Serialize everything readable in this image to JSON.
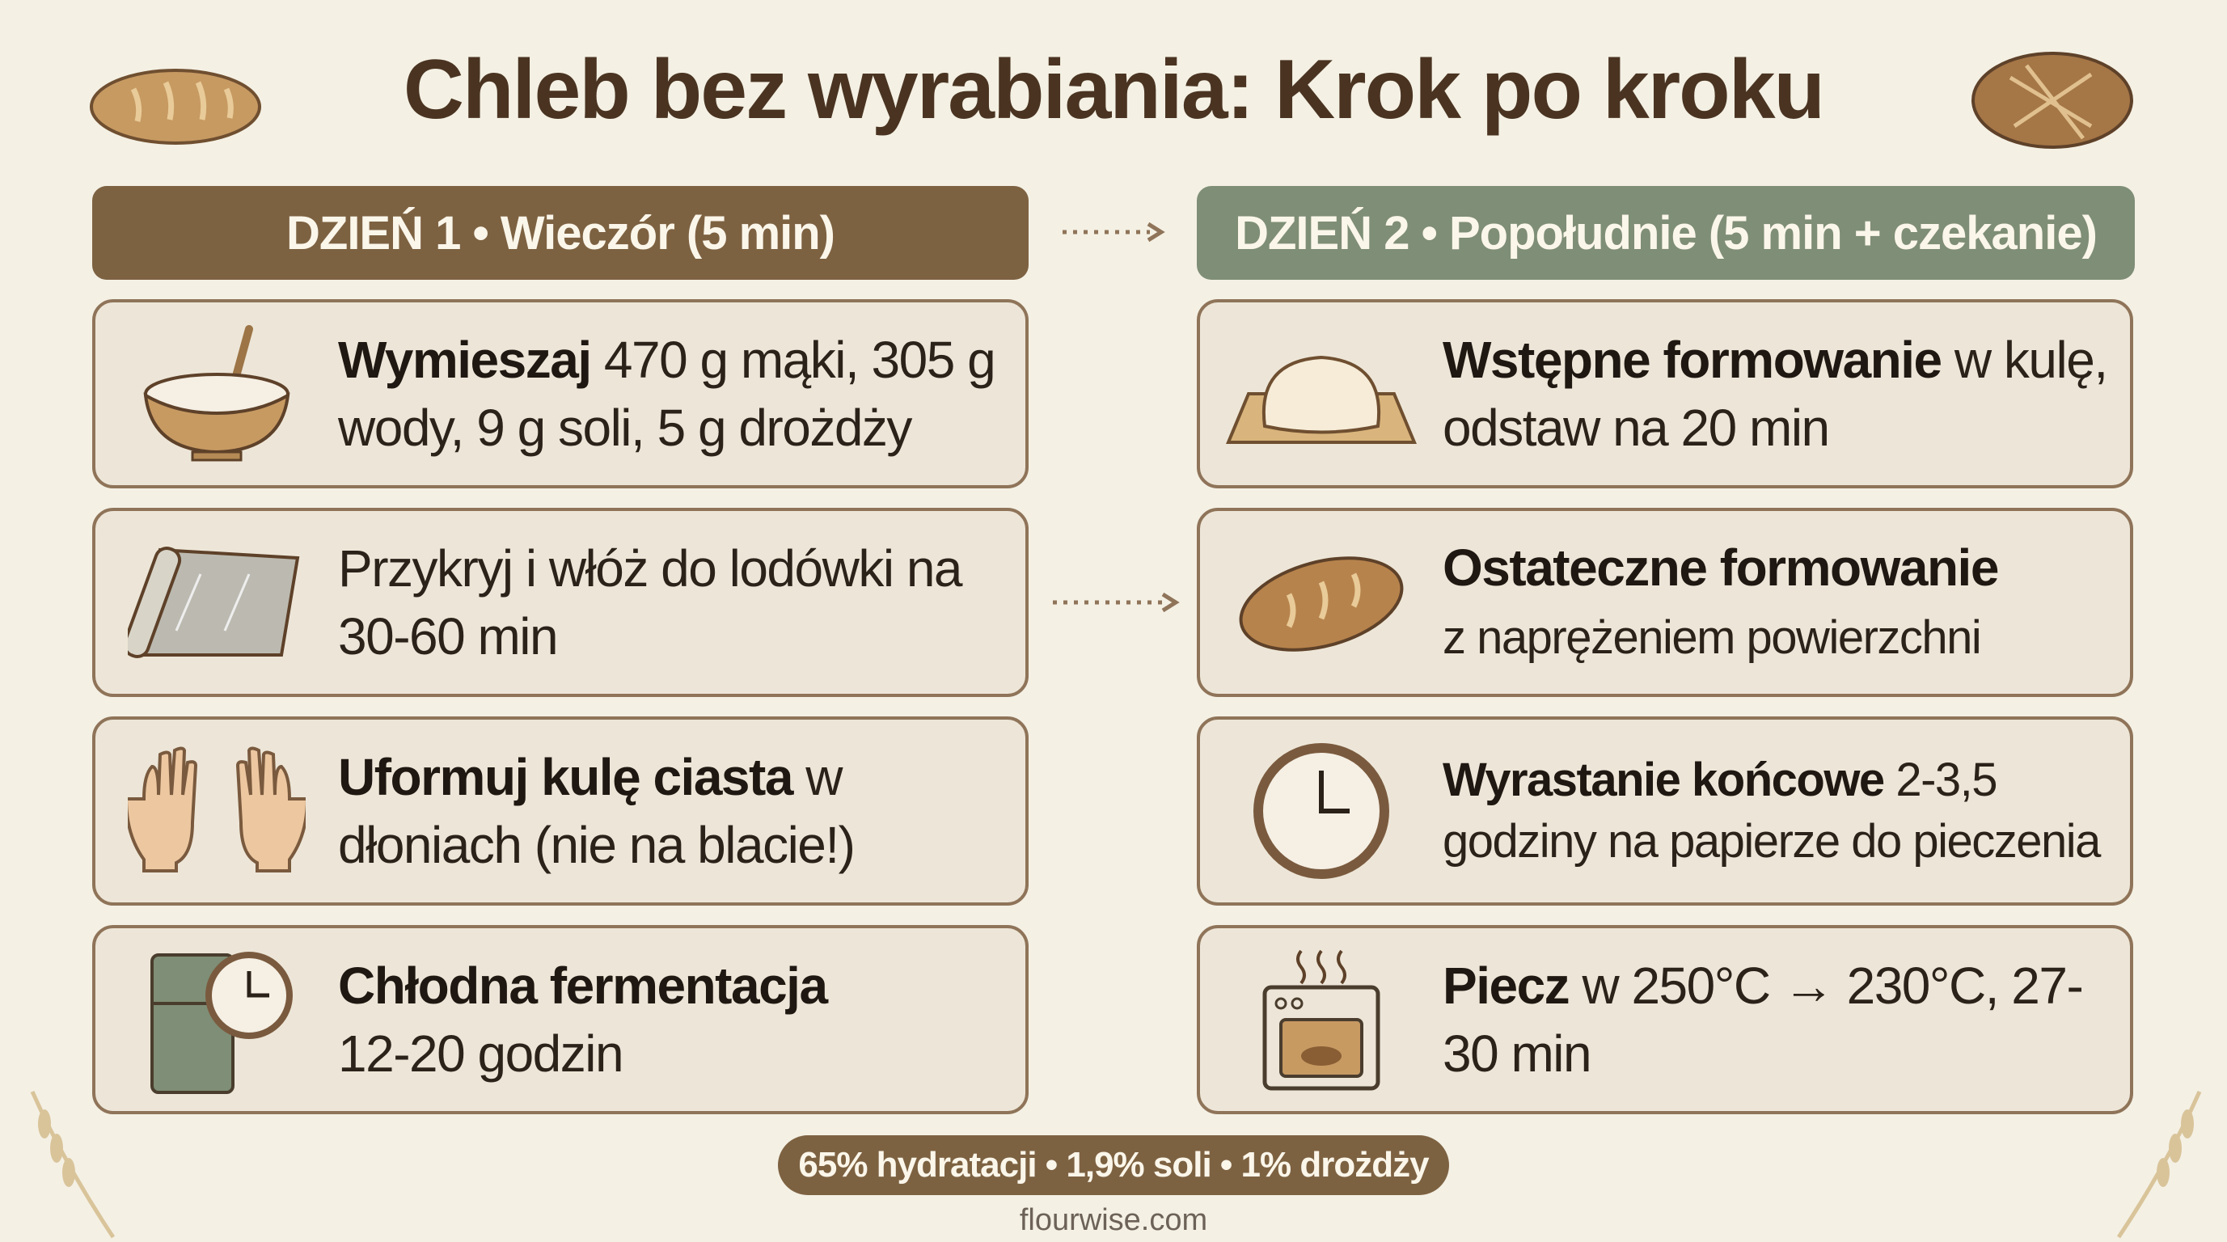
{
  "title": "Chleb bez wyrabiania: Krok po kroku",
  "day1": {
    "header": "DZIEŃ 1 • Wieczór (5 min)",
    "color": "#7d6242",
    "steps": [
      {
        "icon": "mixing-bowl-icon",
        "bold": "Wymieszaj",
        "text": " 470 g mąki, 305 g wody, 9 g soli, 5 g drożdży"
      },
      {
        "icon": "plastic-wrap-icon",
        "bold": "",
        "text": "Przykryj i włóż do lodówki na 30-60 min"
      },
      {
        "icon": "hands-icon",
        "bold": "Uformuj kulę ciasta",
        "text": " w dłoniach (nie na blacie!)"
      },
      {
        "icon": "fridge-clock-icon",
        "bold": "Chłodna fermentacja",
        "text": " 12-20 godzin"
      }
    ]
  },
  "day2": {
    "header": "DZIEŃ 2 • Popołudnie (5 min + czekanie)",
    "color": "#7f8e76",
    "steps": [
      {
        "icon": "dough-ball-icon",
        "bold": "Wstępne formowanie",
        "text": " w kulę, odstaw na 20 min"
      },
      {
        "icon": "bread-loaf-icon",
        "bold": "Ostateczne formowanie",
        "text": " z naprężeniem powierzchni"
      },
      {
        "icon": "clock-icon",
        "bold": "Wyrastanie końcowe",
        "text": " 2-3,5 godziny na papierze do pieczenia"
      },
      {
        "icon": "oven-icon",
        "bold": "Piecz",
        "text": " w 250°C → 230°C, 27-30 min"
      }
    ]
  },
  "summary": "65% hydratacji • 1,9% soli • 1% drożdży",
  "footer": "flourwise.com"
}
